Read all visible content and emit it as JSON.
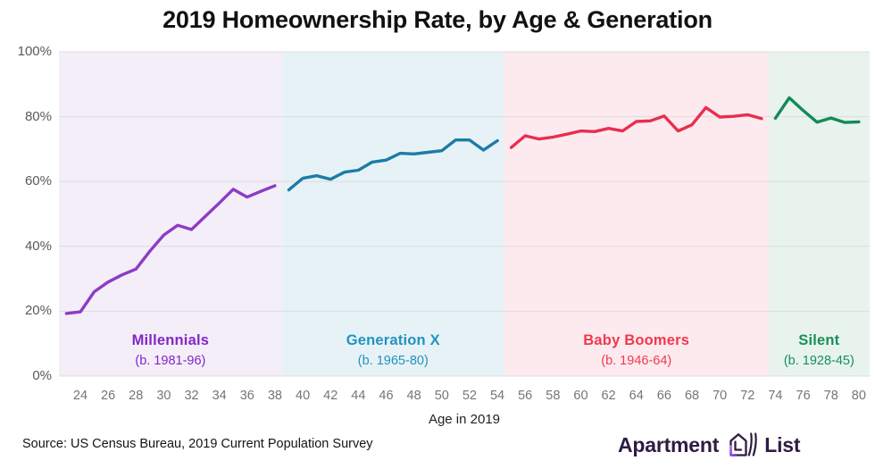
{
  "title": "2019 Homeownership Rate, by Age & Generation",
  "source": "Source: US Census Bureau, 2019 Current Population Survey",
  "logo": {
    "word1": "Apartment",
    "word2": "List"
  },
  "colors": {
    "grid": "#dcdcdc",
    "y_tick_text": "#595959",
    "x_tick_text": "#757575",
    "title_text": "#111111",
    "logo_text": "#2e1c41",
    "logo_accent": "#8b3df0"
  },
  "chart_data": {
    "type": "line",
    "title": "2019 Homeownership Rate, by Age & Generation",
    "xlabel": "Age in 2019",
    "ylabel": "",
    "xlim": [
      22.46,
      80.78
    ],
    "ylim": [
      0,
      100
    ],
    "x_ticks": [
      24,
      26,
      28,
      30,
      32,
      34,
      36,
      38,
      40,
      42,
      44,
      46,
      48,
      50,
      52,
      54,
      56,
      58,
      60,
      62,
      64,
      66,
      68,
      70,
      72,
      74,
      76,
      78,
      80
    ],
    "y_ticks": [
      0,
      20,
      40,
      60,
      80,
      100
    ],
    "y_tick_suffix": "%",
    "grid": true,
    "legend_position": "in-band-labels",
    "series": [
      {
        "name": "Millennials",
        "born": "(b. 1981-96)",
        "color": "#8d3cc5",
        "label_color": "#8426c6",
        "band_color": "#f4eef9",
        "band": [
          22.46,
          38.5
        ],
        "age_start": 23,
        "ages": [
          23,
          24,
          25,
          26,
          27,
          28,
          29,
          30,
          31,
          32,
          33,
          34,
          35,
          36,
          37,
          38
        ],
        "values": [
          19.3,
          19.8,
          26.0,
          29.0,
          31.2,
          33.0,
          38.5,
          43.5,
          46.5,
          45.2,
          49.3,
          53.4,
          57.6,
          55.2,
          57.0,
          58.7
        ]
      },
      {
        "name": "Generation X",
        "born": "(b. 1965-80)",
        "color": "#1b7ca6",
        "label_color": "#2093be",
        "band_color": "#e7f2f7",
        "band": [
          38.5,
          54.5
        ],
        "age_start": 39,
        "ages": [
          39,
          40,
          41,
          42,
          43,
          44,
          45,
          46,
          47,
          48,
          49,
          50,
          51,
          52,
          53,
          54
        ],
        "values": [
          57.4,
          61.0,
          61.8,
          60.7,
          62.9,
          63.5,
          66.0,
          66.6,
          68.7,
          68.5,
          69.0,
          69.5,
          72.8,
          72.8,
          69.7,
          72.6
        ]
      },
      {
        "name": "Baby Boomers",
        "born": "(b. 1946-64)",
        "color": "#e82e4f",
        "label_color": "#ef394f",
        "band_color": "#fdeaee",
        "band": [
          54.5,
          73.5
        ],
        "age_start": 55,
        "ages": [
          55,
          56,
          57,
          58,
          59,
          60,
          61,
          62,
          63,
          64,
          65,
          66,
          67,
          68,
          69,
          70,
          71,
          72,
          73
        ],
        "values": [
          70.5,
          74.1,
          73.1,
          73.7,
          74.6,
          75.6,
          75.4,
          76.4,
          75.6,
          78.5,
          78.7,
          80.2,
          75.6,
          77.5,
          82.8,
          79.9,
          80.1,
          80.6,
          79.4
        ]
      },
      {
        "name": "Silent",
        "born": "(b. 1928-45)",
        "color": "#108c55",
        "label_color": "#149159",
        "band_color": "#e9f3ee",
        "band": [
          73.5,
          80.78
        ],
        "age_start": 74,
        "ages": [
          74,
          75,
          76,
          77,
          78,
          79,
          80
        ],
        "values": [
          79.5,
          85.8,
          81.9,
          78.3,
          79.6,
          78.2,
          78.4
        ]
      }
    ]
  }
}
